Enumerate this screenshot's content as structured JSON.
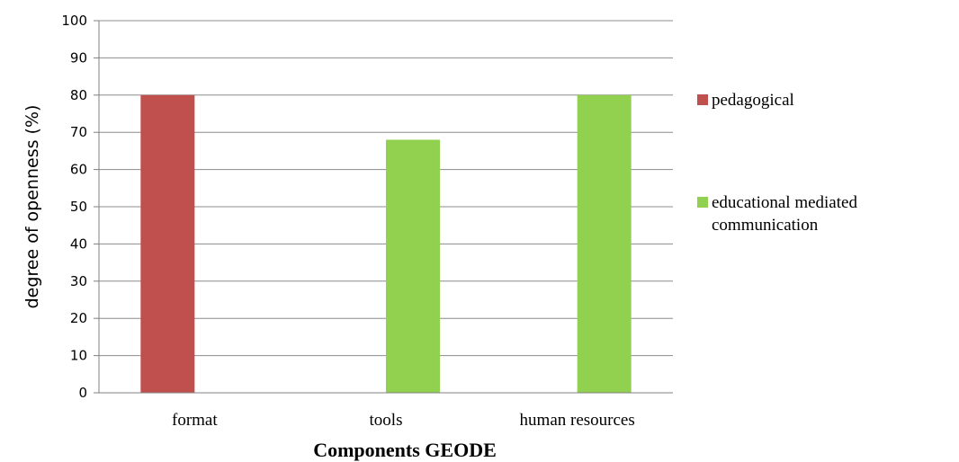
{
  "chart_data": {
    "type": "bar",
    "categories": [
      "format",
      "tools",
      "human resources"
    ],
    "series": [
      {
        "name": "pedagogical",
        "color": "#c0504d",
        "values": [
          80,
          null,
          null
        ]
      },
      {
        "name": "educational mediated communication",
        "legend_lines": [
          "educational mediated",
          "communication"
        ],
        "color": "#92d050",
        "values": [
          null,
          68,
          80
        ]
      }
    ],
    "xlabel": "Components GEODE",
    "ylabel": "degree of openness (%)",
    "ylim": [
      0,
      100
    ],
    "yticks": [
      0,
      10,
      20,
      30,
      40,
      50,
      60,
      70,
      80,
      90,
      100
    ],
    "grid": true,
    "legend_position": "right"
  }
}
